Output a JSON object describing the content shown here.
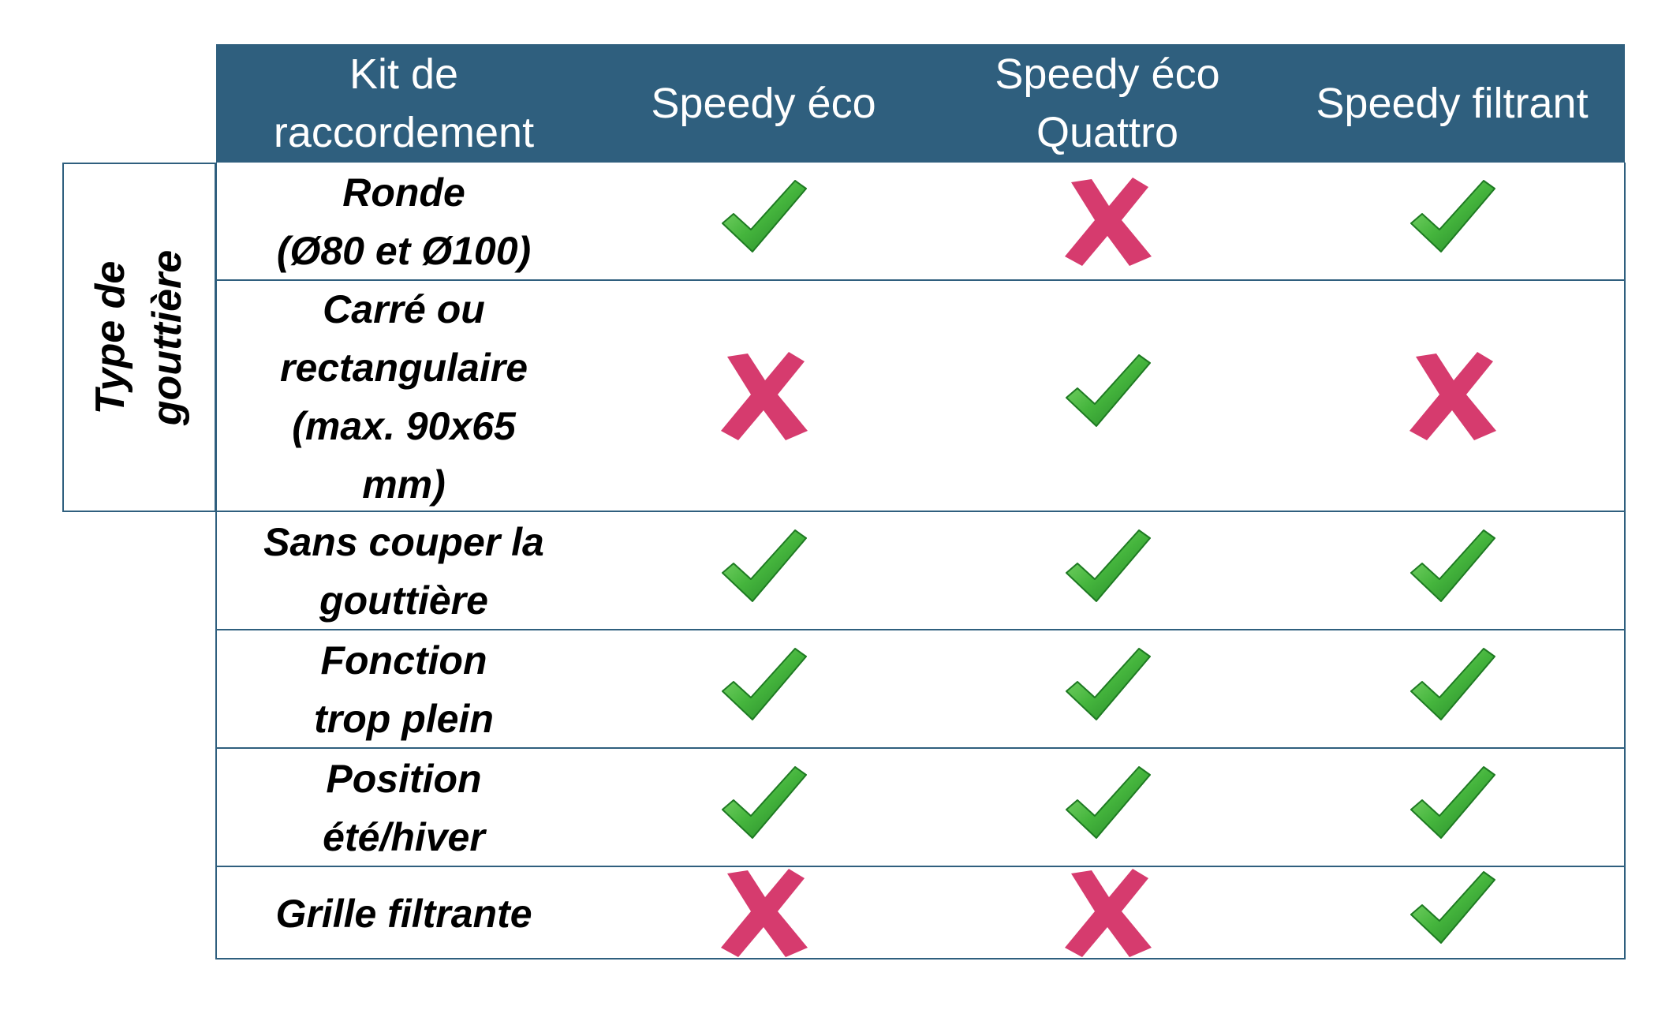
{
  "header": {
    "col0": "Kit de\nraccordement",
    "col1": "Speedy éco",
    "col2": "Speedy éco\nQuattro",
    "col3": "Speedy filtrant"
  },
  "group_label": "Type de\ngouttière",
  "rows": [
    {
      "label": "Ronde\n(Ø80 et Ø100)",
      "values": [
        "check",
        "cross",
        "check"
      ]
    },
    {
      "label": "Carré ou\nrectangulaire\n(max. 90x65\nmm)",
      "values": [
        "cross",
        "check",
        "cross"
      ]
    },
    {
      "label": "Sans couper la\ngouttière",
      "values": [
        "check",
        "check",
        "check"
      ]
    },
    {
      "label": "Fonction\ntrop plein",
      "values": [
        "check",
        "check",
        "check"
      ]
    },
    {
      "label": "Position\nété/hiver",
      "values": [
        "check",
        "check",
        "check"
      ]
    },
    {
      "label": "Grille filtrante",
      "values": [
        "cross",
        "cross",
        "check"
      ]
    }
  ],
  "icons": {
    "check": "check-icon",
    "cross": "cross-icon"
  },
  "colors": {
    "header_bg": "#2f5f7e",
    "header_text": "#ffffff",
    "border": "#2f5f7e",
    "check_green": "#3eaa3a",
    "cross_pink": "#d63b6e"
  }
}
